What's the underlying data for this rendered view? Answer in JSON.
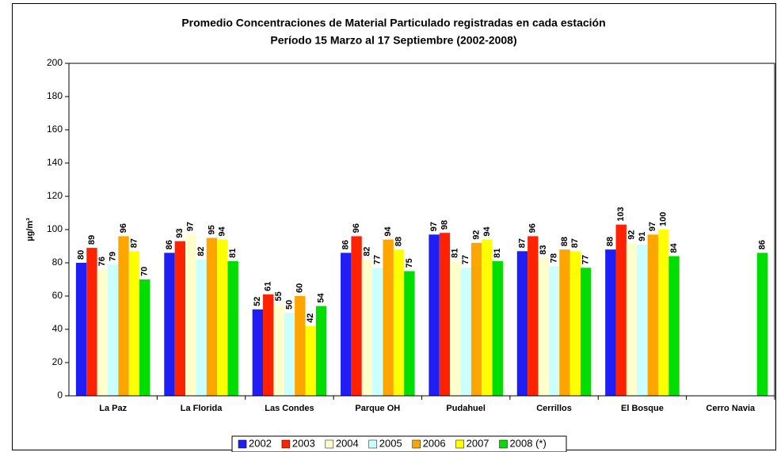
{
  "chart_data": {
    "type": "bar",
    "title": "Promedio Concentraciones de Material Particulado registradas en cada estación",
    "subtitle": "Período 15 Marzo al 17 Septiembre (2002-2008)",
    "y_label": "µg/m³",
    "categories": [
      "La Paz",
      "La Florida",
      "Las Condes",
      "Parque OH",
      "Pudahuel",
      "Cerrillos",
      "El Bosque",
      "Cerro Navia"
    ],
    "series": [
      {
        "name": "2002",
        "color": "#1f1ff5",
        "values": [
          80,
          86,
          52,
          86,
          97,
          87,
          88,
          null
        ]
      },
      {
        "name": "2003",
        "color": "#ff2200",
        "values": [
          89,
          93,
          61,
          96,
          98,
          96,
          103,
          null
        ]
      },
      {
        "name": "2004",
        "color": "#ffffcc",
        "values": [
          76,
          97,
          55,
          82,
          81,
          83,
          92,
          null
        ]
      },
      {
        "name": "2005",
        "color": "#ccffff",
        "values": [
          79,
          82,
          50,
          77,
          77,
          78,
          91,
          null
        ]
      },
      {
        "name": "2006",
        "color": "#ffa500",
        "values": [
          96,
          95,
          60,
          94,
          92,
          88,
          97,
          null
        ]
      },
      {
        "name": "2007",
        "color": "#ffff00",
        "values": [
          87,
          94,
          42,
          88,
          94,
          87,
          100,
          null
        ]
      },
      {
        "name": "2008 (*)",
        "color": "#00dd00",
        "values": [
          70,
          81,
          54,
          75,
          81,
          77,
          84,
          86
        ]
      }
    ],
    "ylim": [
      0,
      200
    ],
    "yticks": [
      0,
      20,
      40,
      60,
      80,
      100,
      120,
      140,
      160,
      180,
      200
    ],
    "legend": "bottom"
  }
}
